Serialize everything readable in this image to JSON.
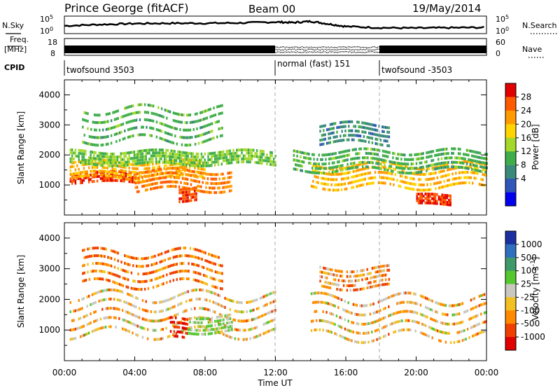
{
  "header": {
    "station": "Prince George (fitACF)",
    "beam": "Beam 00",
    "date": "19/May/2014"
  },
  "noise_panel": {
    "left_label": "N.Sky",
    "right_label": "N.Search",
    "left_ticks": [
      "10^5",
      "10^0"
    ],
    "right_ticks": [
      "10^5",
      "10^0"
    ]
  },
  "freq_panel": {
    "left_label_top": "Freq.",
    "left_label_unit": "[MHz]",
    "left_ticks": [
      "18",
      "8"
    ],
    "right_label": "Nave",
    "right_ticks": [
      "60",
      "0"
    ]
  },
  "cpid": {
    "label": "CPID",
    "segments": [
      {
        "start_h": 0,
        "end_h": 12,
        "name": "twofsound 3503"
      },
      {
        "start_h": 12,
        "end_h": 18,
        "name": "normal (fast) 151"
      },
      {
        "start_h": 18,
        "end_h": 24,
        "name": "twofsound -3503"
      }
    ]
  },
  "x_axis": {
    "label": "Time UT",
    "ticks": [
      "00:00",
      "04:00",
      "08:00",
      "12:00",
      "16:00",
      "20:00",
      "00:00"
    ]
  },
  "power_colorbar": {
    "label": "Power [dB]",
    "ticks": [
      "28",
      "24",
      "20",
      "16",
      "12",
      "8",
      "4"
    ],
    "colors": [
      "#e00000",
      "#ff5a00",
      "#ff9a00",
      "#ffd400",
      "#a4d82a",
      "#3fae4a",
      "#3a8a7a",
      "#2f56b8",
      "#0000ee"
    ]
  },
  "velocity_colorbar": {
    "label": "Velocity [m s^-1]",
    "ticks": [
      "1000",
      "500",
      "100",
      "25",
      "-25",
      "-100",
      "-500",
      "-1000"
    ],
    "colors": [
      "#1a2fa0",
      "#2f6fbf",
      "#3f9a6a",
      "#55c830",
      "#c8c8c0",
      "#f2c020",
      "#ff8a00",
      "#f04000",
      "#e00000"
    ]
  },
  "chart_data": [
    {
      "type": "line",
      "title": "Prince George (fitACF) Beam 00 19/May/2014",
      "panel": "noise",
      "series": [
        {
          "name": "N.Sky",
          "x": [
            0,
            2,
            4,
            6,
            8,
            10,
            12,
            13,
            14,
            15,
            16,
            18,
            20,
            22,
            24
          ],
          "y": [
            2.2,
            2.6,
            2.9,
            3.0,
            3.0,
            3.1,
            3.4,
            3.2,
            3.6,
            2.8,
            2.0,
            1.6,
            1.5,
            1.6,
            1.7
          ]
        }
      ],
      "ylim": [
        0,
        5
      ]
    },
    {
      "type": "line",
      "panel": "frequency",
      "series": [
        {
          "name": "Freq.",
          "x": [
            0,
            12,
            12,
            18,
            18,
            24
          ],
          "y": [
            11,
            11,
            10,
            10,
            11,
            11
          ]
        }
      ],
      "ylim": [
        8,
        18
      ]
    },
    {
      "type": "heatmap",
      "panel": "power",
      "ylabel": "Slant Range [km]",
      "xlabel": "Time UT",
      "xlim": [
        0,
        24
      ],
      "ylim": [
        0,
        4500
      ],
      "yticks": [
        1000,
        2000,
        3000,
        4000
      ],
      "colorbar": "Power [dB]",
      "bands": [
        {
          "t0": 0.3,
          "t1": 4.0,
          "r_center": 1250,
          "r_width": 150,
          "power_db": 27
        },
        {
          "t0": 0.3,
          "t1": 8.0,
          "r_center": 1500,
          "r_width": 250,
          "power_db": 20
        },
        {
          "t0": 4.0,
          "t1": 9.5,
          "r_center": 1150,
          "r_width": 300,
          "power_db": 24
        },
        {
          "t0": 0.3,
          "t1": 12.0,
          "r_center": 1900,
          "r_width": 200,
          "power_db": 12
        },
        {
          "t0": 1.0,
          "t1": 9.0,
          "r_center": 3000,
          "r_width": 500,
          "power_db": 10
        },
        {
          "t0": 6.5,
          "t1": 7.5,
          "r_center": 700,
          "r_width": 200,
          "power_db": 27
        },
        {
          "t0": 14.0,
          "t1": 24.0,
          "r_center": 1300,
          "r_width": 350,
          "power_db": 20
        },
        {
          "t0": 13.0,
          "t1": 24.0,
          "r_center": 1800,
          "r_width": 300,
          "power_db": 10
        },
        {
          "t0": 14.5,
          "t1": 18.5,
          "r_center": 2700,
          "r_width": 300,
          "power_db": 6
        },
        {
          "t0": 20.0,
          "t1": 22.0,
          "r_center": 500,
          "r_width": 150,
          "power_db": 28
        }
      ]
    },
    {
      "type": "heatmap",
      "panel": "velocity",
      "ylabel": "Slant Range [km]",
      "xlabel": "Time UT",
      "xlim": [
        0,
        24
      ],
      "ylim": [
        0,
        4500
      ],
      "yticks": [
        1000,
        2000,
        3000,
        4000
      ],
      "colorbar": "Velocity [m s^-1]",
      "bands": [
        {
          "t0": 0.3,
          "t1": 12.0,
          "r_center": 1500,
          "r_width": 600,
          "velocity": 0
        },
        {
          "t0": 1.0,
          "t1": 9.0,
          "r_center": 3000,
          "r_width": 500,
          "velocity": -100
        },
        {
          "t0": 6.0,
          "t1": 7.0,
          "r_center": 1000,
          "r_width": 300,
          "velocity": -500
        },
        {
          "t0": 7.0,
          "t1": 9.5,
          "r_center": 1200,
          "r_width": 250,
          "velocity": 100
        },
        {
          "t0": 14.0,
          "t1": 24.0,
          "r_center": 1400,
          "r_width": 600,
          "velocity": 0
        },
        {
          "t0": 14.5,
          "t1": 18.5,
          "r_center": 2700,
          "r_width": 300,
          "velocity": -25
        }
      ]
    }
  ]
}
